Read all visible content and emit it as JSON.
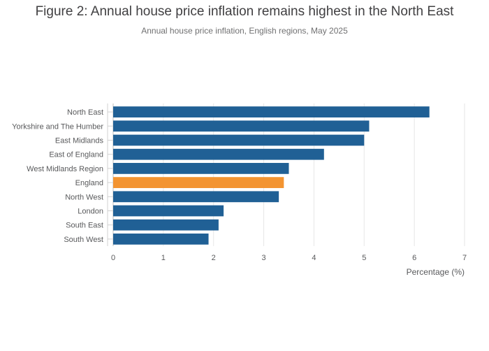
{
  "header": {
    "title": "Figure 2: Annual house price inflation remains highest in the North East",
    "subtitle": "Annual house price inflation, English regions, May 2025"
  },
  "colors": {
    "bar": "#206095",
    "highlight": "#f39431",
    "grid": "#e6e6e6",
    "text": "#414042"
  },
  "chart_data": {
    "type": "bar",
    "orientation": "horizontal",
    "title": "Figure 2: Annual house price inflation remains highest in the North East",
    "subtitle": "Annual house price inflation, English regions, May 2025",
    "xlabel": "Percentage (%)",
    "ylabel": "",
    "categories": [
      "North East",
      "Yorkshire and The Humber",
      "East Midlands",
      "East of England",
      "West Midlands Region",
      "England",
      "North West",
      "London",
      "South East",
      "South West"
    ],
    "values": [
      6.3,
      5.1,
      5.0,
      4.2,
      3.5,
      3.4,
      3.3,
      2.2,
      2.1,
      1.9
    ],
    "highlighted_category": "England",
    "xlim": [
      0,
      7
    ],
    "xticks": [
      "0",
      "1",
      "2",
      "3",
      "4",
      "5",
      "6",
      "7"
    ],
    "grid": "vertical",
    "legend": "none"
  }
}
